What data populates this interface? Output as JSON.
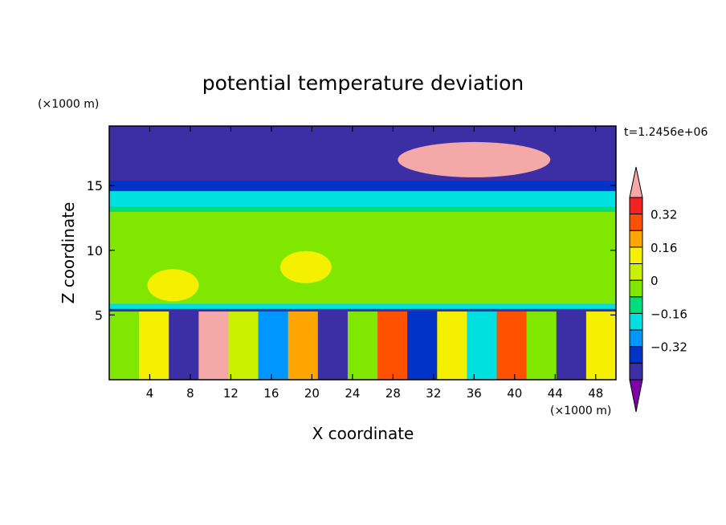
{
  "chart_data": {
    "type": "heatmap",
    "title": "potential temperature deviation",
    "xlabel": "X coordinate",
    "ylabel": "Z coordinate",
    "x_unit": "(×1000 m)",
    "y_unit": "(×1000 m)",
    "time_label": "t=1.2456e+06",
    "xlim": [
      0,
      50
    ],
    "ylim": [
      0,
      19.6
    ],
    "x_ticks": [
      4,
      8,
      12,
      16,
      20,
      24,
      28,
      32,
      36,
      40,
      44,
      48
    ],
    "y_ticks": [
      5,
      10,
      15
    ],
    "colorbar": {
      "tick_labels": [
        "0.32",
        "0.16",
        "0",
        "−0.16",
        "−0.32"
      ],
      "tick_values": [
        0.32,
        0.16,
        0,
        -0.16,
        -0.32
      ],
      "levels": [
        -0.4,
        -0.32,
        -0.24,
        -0.16,
        -0.08,
        0,
        0.08,
        0.16,
        0.24,
        0.32,
        0.4
      ],
      "colors": [
        "#7f00a8",
        "#3c2fa6",
        "#0033c8",
        "#0096ff",
        "#00e0e0",
        "#00dd7a",
        "#80e800",
        "#c8f000",
        "#f5f000",
        "#ffa500",
        "#ff5000",
        "#f52020",
        "#f5a8a8"
      ],
      "extend": "both"
    },
    "bands": [
      {
        "z": [
          0,
          5.3
        ],
        "value": "mixed"
      },
      {
        "z": [
          5.3,
          5.5
        ],
        "value": -0.36
      },
      {
        "z": [
          5.5,
          5.9
        ],
        "value": -0.12
      },
      {
        "z": [
          5.9,
          13.0
        ],
        "value": 0.04
      },
      {
        "z": [
          13.0,
          13.4
        ],
        "value": -0.04
      },
      {
        "z": [
          13.4,
          14.6
        ],
        "value": -0.12
      },
      {
        "z": [
          14.6,
          15.4
        ],
        "value": -0.32
      },
      {
        "z": [
          15.4,
          19.6
        ],
        "value": -0.4
      }
    ],
    "warm_blobs": [
      {
        "x": 6.3,
        "z": 7.3,
        "value": 0.16
      },
      {
        "x": 19.4,
        "z": 8.7,
        "value": 0.16
      },
      {
        "x": 36,
        "z": 17,
        "value": 0.4
      }
    ]
  }
}
